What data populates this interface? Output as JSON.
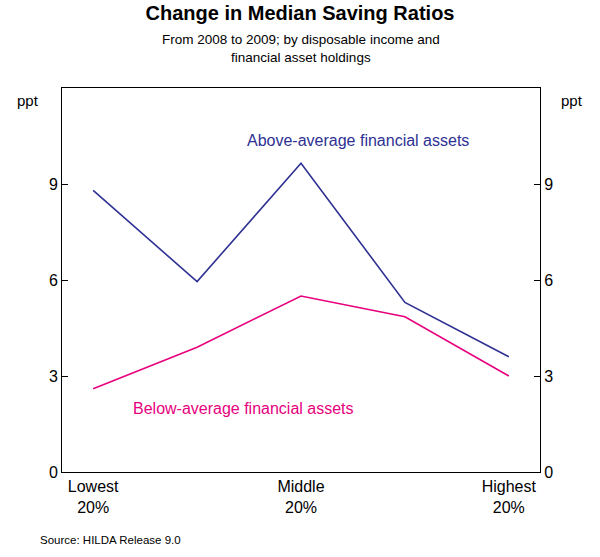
{
  "chart_data": {
    "type": "line",
    "title": "Change in Median Saving Ratios",
    "subtitle": "From 2008 to 2009; by disposable income and financial asset holdings",
    "ylabel": "ppt",
    "source": "Source: HILDA Release 9.0",
    "categories": [
      "Lowest 20%",
      null,
      "Middle 20%",
      null,
      "Highest 20%"
    ],
    "series": [
      {
        "name": "Above-average financial assets",
        "color": "#2e3192",
        "values": [
          8.8,
          5.95,
          9.65,
          5.3,
          3.6
        ]
      },
      {
        "name": "Below-average financial assets",
        "color": "#e6007e",
        "values": [
          2.6,
          3.9,
          5.5,
          4.85,
          3.0
        ]
      }
    ],
    "ylim": [
      0,
      12
    ],
    "yticks": [
      0,
      3,
      6,
      9
    ],
    "grid": false
  }
}
